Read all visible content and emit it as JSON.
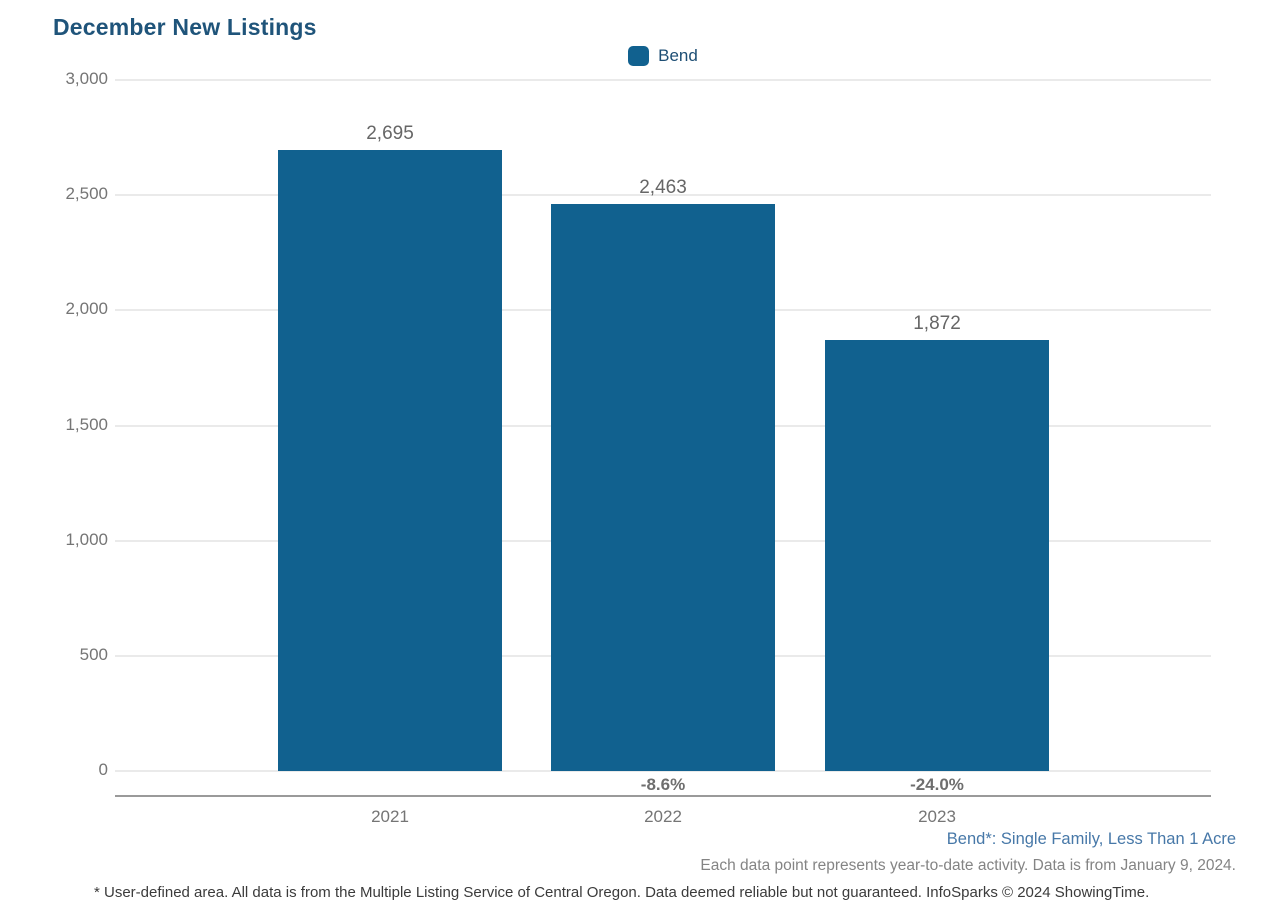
{
  "page": {
    "title": "December New Listings"
  },
  "legend": {
    "label": "Bend",
    "swatch_color": "#11618F"
  },
  "chart_data": {
    "type": "bar",
    "title": "December New Listings",
    "categories": [
      "2021",
      "2022",
      "2023"
    ],
    "series": [
      {
        "name": "Bend",
        "values": [
          2695,
          2463,
          1872
        ]
      }
    ],
    "value_labels": [
      "2,695",
      "2,463",
      "1,872"
    ],
    "pct_change_labels": [
      "",
      "-8.6%",
      "-24.0%"
    ],
    "xlabel": "",
    "ylabel": "",
    "ylim": [
      0,
      3000
    ],
    "yticks": [
      0,
      500,
      1000,
      1500,
      2000,
      2500,
      3000
    ],
    "ytick_labels": [
      "0",
      "500",
      "1,000",
      "1,500",
      "2,000",
      "2,500",
      "3,000"
    ],
    "grid": "horizontal",
    "legend_position": "top-center",
    "bar_color": "#11618F"
  },
  "annotations": {
    "series_note": "Bend*: Single Family, Less Than 1 Acre",
    "data_note": "Each data point represents year-to-date activity. Data is from January 9, 2024.",
    "footer": "* User-defined area. All data is from the Multiple Listing Service of Central Oregon. Data deemed reliable but not guaranteed. InfoSparks © 2024 ShowingTime."
  },
  "colors": {
    "bar": "#11618F",
    "title_text": "#1F547A",
    "legend_text": "#1D4E74",
    "axis_text": "#757575",
    "value_label_text": "#666666",
    "pct_label_text": "#6E6E6E",
    "gridline": "#EAEAEA",
    "baseline": "#9A9A9A",
    "series_note_text": "#4778A8",
    "data_note_text": "#848484",
    "footer_text": "#3B3B3B"
  }
}
